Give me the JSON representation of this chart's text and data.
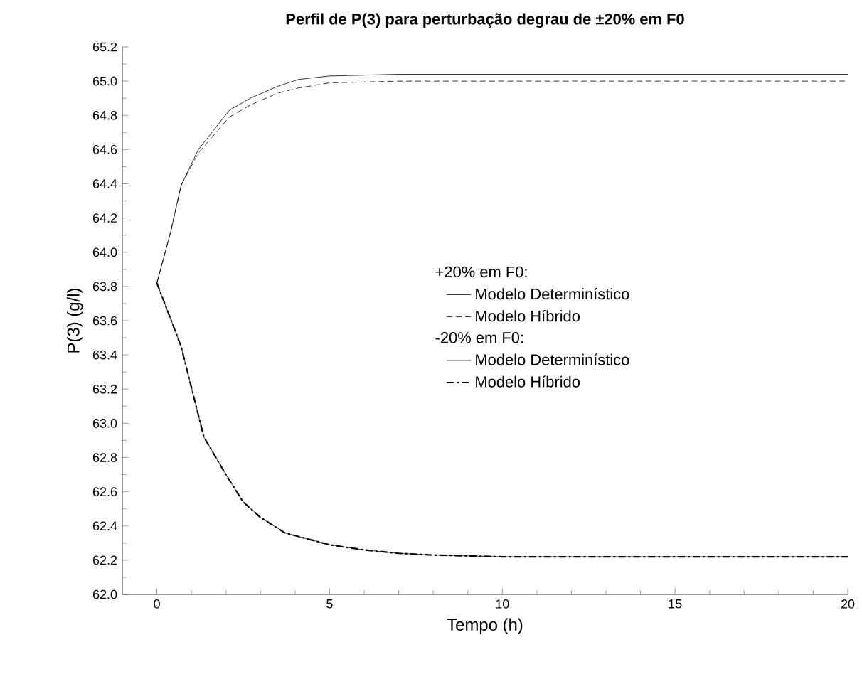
{
  "chart_data": {
    "type": "line",
    "title": "Perfil de P(3) para perturbação degrau de ±20% em F0",
    "xlabel": "Tempo (h)",
    "ylabel": "P(3) (g/l)",
    "annotations": [
      "+20% em F0:",
      "-20% em F0:"
    ],
    "legend": "right",
    "xlim": [
      -1,
      20
    ],
    "xticks": [
      0,
      5,
      10,
      15,
      20
    ],
    "ylim": [
      62.0,
      65.2
    ],
    "yticks": [
      {
        "value": 62.0,
        "label": "62.0"
      },
      {
        "value": 62.2,
        "label": "62.2"
      },
      {
        "value": 62.4,
        "label": "62.4"
      },
      {
        "value": 62.6,
        "label": "62.6"
      },
      {
        "value": 62.8,
        "label": "62.8"
      },
      {
        "value": 63.0,
        "label": "63.0"
      },
      {
        "value": 63.2,
        "label": "63.2"
      },
      {
        "value": 63.4,
        "label": "63.4"
      },
      {
        "value": 63.6,
        "label": "63.6"
      },
      {
        "value": 63.8,
        "label": "63.8"
      },
      {
        "value": 64.0,
        "label": "64.0"
      },
      {
        "value": 64.2,
        "label": "64.2"
      },
      {
        "value": 64.4,
        "label": "64.4"
      },
      {
        "value": 64.6,
        "label": "64.6"
      },
      {
        "value": 64.8,
        "label": "64.8"
      },
      {
        "value": 65.0,
        "label": "65.0"
      },
      {
        "value": 65.2,
        "label": "65.2"
      }
    ],
    "series": [
      {
        "name": "Modelo Determinístico",
        "color": "#000000",
        "line_style": "solid",
        "x": [
          0,
          0.4,
          0.7,
          1.2,
          2.1,
          2.7,
          3.5,
          4.1,
          5,
          7,
          10,
          15,
          20
        ],
        "values": [
          63.82,
          64.12,
          64.39,
          64.6,
          64.83,
          64.9,
          64.97,
          65.01,
          65.03,
          65.04,
          65.04,
          65.04,
          65.04
        ]
      },
      {
        "name": "Modelo Híbrido",
        "color": "#000000",
        "line_style": "dashed",
        "x": [
          0,
          0.4,
          0.7,
          1.2,
          2.1,
          2.7,
          3.5,
          4.1,
          5,
          7,
          10,
          15,
          20
        ],
        "values": [
          63.82,
          64.12,
          64.39,
          64.58,
          64.79,
          64.86,
          64.93,
          64.96,
          64.99,
          65.0,
          65.0,
          65.0,
          65.0
        ]
      },
      {
        "name": "Modelo Determinístico",
        "color": "#000000",
        "line_style": "solid",
        "x": [
          0,
          0.7,
          1.36,
          2.0,
          2.5,
          3.0,
          3.7,
          5,
          6,
          7,
          8,
          10,
          15,
          20
        ],
        "values": [
          63.82,
          63.45,
          62.92,
          62.7,
          62.54,
          62.45,
          62.36,
          62.29,
          62.26,
          62.24,
          62.23,
          62.22,
          62.22,
          62.22
        ]
      },
      {
        "name": "Modelo Híbrido",
        "color": "#000000",
        "line_style": "dashdot",
        "x": [
          0,
          0.7,
          1.36,
          2.0,
          2.5,
          3.0,
          3.7,
          5,
          6,
          7,
          8,
          10,
          15,
          20
        ],
        "values": [
          63.82,
          63.45,
          62.92,
          62.7,
          62.54,
          62.45,
          62.36,
          62.29,
          62.26,
          62.24,
          62.23,
          62.22,
          62.22,
          62.22
        ]
      }
    ]
  }
}
